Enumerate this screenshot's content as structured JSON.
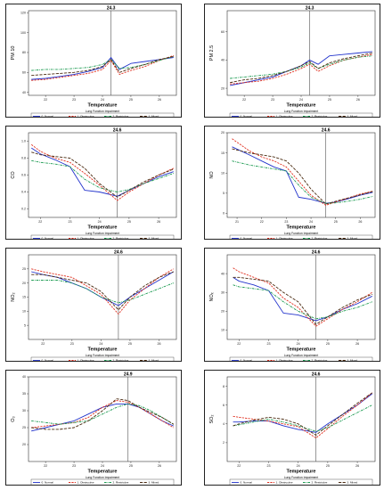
{
  "legend_title": "Lung Function Impairment",
  "x_axis_label": "Temperature",
  "series_styles": [
    {
      "name": "0. Normal",
      "color": "#2233cc",
      "dash": ""
    },
    {
      "name": "1. Obstructive",
      "color": "#e03020",
      "dash": "2.2 1.2"
    },
    {
      "name": "2. Restrictive",
      "color": "#1a9a50",
      "dash": "2.6 1 0.8 1"
    },
    {
      "name": "3. Mixed",
      "color": "#4a2a10",
      "dash": "3.2 1.4"
    }
  ],
  "chart_data": [
    {
      "type": "line",
      "threshold_label": "24.3",
      "threshold": 24.3,
      "ylabel": "PM 10",
      "xlim": [
        21.4,
        26.6
      ],
      "ylim": [
        37,
        122
      ],
      "xticks": [
        22,
        23,
        24,
        25,
        26
      ],
      "xtick_labels": [
        "22",
        "23",
        "24",
        "25",
        "26"
      ],
      "yticks": [
        40,
        60,
        80,
        100,
        120
      ],
      "ytick_labels": [
        "40",
        "60",
        "80",
        "100",
        "120"
      ],
      "x": [
        21.5,
        22,
        22.5,
        23,
        23.5,
        24,
        24.3,
        24.6,
        25,
        25.5,
        26,
        26.5
      ],
      "series": [
        {
          "name": "0. Normal",
          "values": [
            53,
            54,
            56,
            58,
            61,
            65,
            75,
            63,
            69,
            71,
            73,
            75
          ]
        },
        {
          "name": "1. Obstructive",
          "values": [
            52,
            53,
            55,
            57,
            59,
            63,
            72,
            58,
            62,
            66,
            72,
            77
          ]
        },
        {
          "name": "2. Restrictive",
          "values": [
            62,
            63,
            63,
            64,
            65,
            68,
            73,
            64,
            65,
            68,
            72,
            76
          ]
        },
        {
          "name": "3. Mixed",
          "values": [
            57,
            58,
            59,
            60,
            62,
            66,
            73,
            60,
            64,
            68,
            73,
            76
          ]
        }
      ]
    },
    {
      "type": "line",
      "threshold_label": "24.3",
      "threshold": 24.3,
      "ylabel": "PM 2.5",
      "xlim": [
        21.4,
        26.6
      ],
      "ylim": [
        15,
        75
      ],
      "xticks": [
        22,
        23,
        24,
        25,
        26
      ],
      "xtick_labels": [
        "22",
        "23",
        "24",
        "25",
        "26"
      ],
      "yticks": [
        20,
        40,
        60
      ],
      "ytick_labels": [
        "20",
        "40",
        "60"
      ],
      "x": [
        21.5,
        22,
        22.5,
        23,
        23.5,
        24,
        24.3,
        24.6,
        25,
        25.5,
        26,
        26.5
      ],
      "series": [
        {
          "name": "0. Normal",
          "values": [
            22,
            24,
            26,
            28,
            32,
            36,
            40,
            37,
            43,
            44,
            45,
            46
          ]
        },
        {
          "name": "1. Obstructive",
          "values": [
            23,
            24,
            25,
            27,
            30,
            34,
            37,
            32,
            36,
            40,
            42,
            44
          ]
        },
        {
          "name": "2. Restrictive",
          "values": [
            27,
            28,
            29,
            30,
            32,
            35,
            38,
            34,
            37,
            40,
            42,
            43
          ]
        },
        {
          "name": "3. Mixed",
          "values": [
            24,
            26,
            27,
            29,
            32,
            36,
            39,
            34,
            38,
            41,
            43,
            45
          ]
        }
      ]
    },
    {
      "type": "line",
      "threshold_label": "24.6",
      "threshold": 24.6,
      "ylabel": "CO",
      "xlim": [
        21.6,
        26.6
      ],
      "ylim": [
        0.1,
        1.1
      ],
      "xticks": [
        22,
        23,
        24,
        25,
        26
      ],
      "xtick_labels": [
        "22",
        "23",
        "24",
        "25",
        "26"
      ],
      "yticks": [
        0.2,
        0.4,
        0.6,
        0.8,
        1.0
      ],
      "ytick_labels": [
        "0.2",
        "0.4",
        "0.6",
        "0.8",
        "1.0"
      ],
      "x": [
        21.7,
        22,
        22.5,
        23,
        23.5,
        24,
        24.6,
        25,
        25.5,
        26,
        26.5
      ],
      "series": [
        {
          "name": "0. Normal",
          "values": [
            0.92,
            0.85,
            0.78,
            0.7,
            0.42,
            0.4,
            0.35,
            0.42,
            0.5,
            0.58,
            0.64
          ]
        },
        {
          "name": "1. Obstructive",
          "values": [
            0.96,
            0.88,
            0.8,
            0.75,
            0.62,
            0.48,
            0.3,
            0.4,
            0.5,
            0.6,
            0.68
          ]
        },
        {
          "name": "2. Restrictive",
          "values": [
            0.77,
            0.75,
            0.73,
            0.7,
            0.55,
            0.45,
            0.4,
            0.43,
            0.5,
            0.56,
            0.62
          ]
        },
        {
          "name": "3. Mixed",
          "values": [
            0.87,
            0.84,
            0.82,
            0.8,
            0.68,
            0.5,
            0.34,
            0.42,
            0.52,
            0.6,
            0.67
          ]
        }
      ]
    },
    {
      "type": "line",
      "threshold_label": "24.6",
      "threshold": 24.6,
      "ylabel": "NO",
      "xlim": [
        20.6,
        26.6
      ],
      "ylim": [
        -1,
        20
      ],
      "xticks": [
        21,
        22,
        23,
        24,
        25,
        26
      ],
      "xtick_labels": [
        "21",
        "22",
        "23",
        "24",
        "25",
        "26"
      ],
      "yticks": [
        0,
        5,
        10,
        15,
        20
      ],
      "ytick_labels": [
        "0",
        "5",
        "10",
        "15",
        "20"
      ],
      "x": [
        20.8,
        21.5,
        22,
        22.5,
        23,
        23.5,
        24,
        24.6,
        25,
        25.5,
        26,
        26.5
      ],
      "series": [
        {
          "name": "0. Normal",
          "values": [
            16.5,
            14.5,
            13,
            11.5,
            10.5,
            4,
            3.5,
            2.5,
            2.8,
            3.6,
            4.5,
            5.2
          ]
        },
        {
          "name": "1. Obstructive",
          "values": [
            18.5,
            15.5,
            14,
            13,
            11.5,
            8,
            4.5,
            2,
            2.8,
            3.8,
            4.8,
            5.5
          ]
        },
        {
          "name": "2. Restrictive",
          "values": [
            13,
            12,
            11.5,
            11,
            10.5,
            7,
            4,
            2.5,
            2.6,
            3,
            3.5,
            4.2
          ]
        },
        {
          "name": "3. Mixed",
          "values": [
            16,
            15,
            14.5,
            14,
            13,
            10,
            6,
            2.3,
            3,
            3.8,
            4.6,
            5.4
          ]
        }
      ]
    },
    {
      "type": "line",
      "threshold_label": "24.6",
      "threshold": 24.6,
      "ylabel": "NO₂",
      "xlim": [
        21.5,
        26.6
      ],
      "ylim": [
        0,
        30
      ],
      "xticks": [
        22,
        23,
        24,
        25,
        26
      ],
      "xtick_labels": [
        "22",
        "23",
        "24",
        "25",
        "26"
      ],
      "yticks": [
        5,
        10,
        15,
        20,
        25
      ],
      "ytick_labels": [
        "5",
        "10",
        "15",
        "20",
        "25"
      ],
      "x": [
        21.6,
        22,
        22.5,
        23,
        23.5,
        24,
        24.6,
        25,
        25.5,
        26,
        26.5
      ],
      "series": [
        {
          "name": "0. Normal",
          "values": [
            24,
            23,
            22,
            20,
            18,
            15,
            12,
            15,
            18,
            21,
            24
          ]
        },
        {
          "name": "1. Obstructive",
          "values": [
            25,
            24,
            23,
            22,
            19,
            16,
            9,
            14,
            18,
            22,
            25
          ]
        },
        {
          "name": "2. Restrictive",
          "values": [
            21,
            21,
            21,
            20,
            18,
            15,
            13,
            14,
            16,
            18,
            20
          ]
        },
        {
          "name": "3. Mixed",
          "values": [
            23,
            23,
            22,
            21,
            20,
            17,
            10.5,
            15,
            19,
            22,
            24
          ]
        }
      ]
    },
    {
      "type": "line",
      "threshold_label": "24.6",
      "threshold": 24.6,
      "ylabel": "NOₓ",
      "xlim": [
        21.6,
        26.6
      ],
      "ylim": [
        5,
        50
      ],
      "xticks": [
        22,
        23,
        24,
        25,
        26
      ],
      "xtick_labels": [
        "22",
        "23",
        "24",
        "25",
        "26"
      ],
      "yticks": [
        10,
        20,
        30,
        40
      ],
      "ytick_labels": [
        "10",
        "20",
        "30",
        "40"
      ],
      "x": [
        21.8,
        22,
        22.5,
        23,
        23.5,
        24,
        24.6,
        25,
        25.5,
        26,
        26.5
      ],
      "series": [
        {
          "name": "0. Normal",
          "values": [
            38,
            36,
            34,
            31,
            19,
            18,
            15,
            17,
            21,
            24,
            28
          ]
        },
        {
          "name": "1. Obstructive",
          "values": [
            43,
            41,
            38,
            35,
            27,
            22,
            12,
            16,
            21,
            25,
            30
          ]
        },
        {
          "name": "2. Restrictive",
          "values": [
            34,
            33,
            32,
            31,
            25,
            20,
            16,
            17,
            20,
            22,
            25
          ]
        },
        {
          "name": "3. Mixed",
          "values": [
            38,
            38,
            37,
            36,
            30,
            25,
            13,
            17,
            22,
            26,
            29
          ]
        }
      ]
    },
    {
      "type": "line",
      "threshold_label": "24.9",
      "threshold": 24.9,
      "ylabel": "O₃",
      "xlim": [
        21.4,
        26.6
      ],
      "ylim": [
        15,
        40
      ],
      "xticks": [
        22,
        23,
        24,
        25,
        26
      ],
      "xtick_labels": [
        "22",
        "23",
        "24",
        "25",
        "26"
      ],
      "yticks": [
        20,
        25,
        30,
        35,
        40
      ],
      "ytick_labels": [
        "20",
        "25",
        "30",
        "35",
        "40"
      ],
      "x": [
        21.5,
        22,
        22.5,
        23,
        23.5,
        24,
        24.5,
        24.9,
        25.3,
        25.7,
        26.1,
        26.5
      ],
      "series": [
        {
          "name": "0. Normal",
          "values": [
            24,
            25,
            26,
            27,
            29,
            31,
            32,
            32,
            31,
            29,
            27,
            25.5
          ]
        },
        {
          "name": "1. Obstructive",
          "values": [
            25,
            25.5,
            26,
            26.5,
            28,
            31,
            33,
            32.5,
            31,
            29,
            27,
            25
          ]
        },
        {
          "name": "2. Restrictive",
          "values": [
            27,
            26.5,
            26,
            26.5,
            27,
            29,
            31,
            32,
            31.5,
            30,
            28,
            26
          ]
        },
        {
          "name": "3. Mixed",
          "values": [
            25,
            24.5,
            24.5,
            25,
            27,
            30,
            33.5,
            33,
            31,
            29.5,
            28,
            26
          ]
        }
      ]
    },
    {
      "type": "line",
      "threshold_label": "24.6",
      "threshold": 24.6,
      "ylabel": "SO₂",
      "xlim": [
        21.6,
        26.6
      ],
      "ylim": [
        0,
        9
      ],
      "xticks": [
        22,
        23,
        24,
        25,
        26
      ],
      "xtick_labels": [
        "22",
        "23",
        "24",
        "25",
        "26"
      ],
      "yticks": [
        2,
        4,
        6,
        8
      ],
      "ytick_labels": [
        "2",
        "4",
        "6",
        "8"
      ],
      "x": [
        21.8,
        22,
        22.5,
        23,
        23.5,
        24,
        24.6,
        25,
        25.5,
        26,
        26.5
      ],
      "series": [
        {
          "name": "0. Normal",
          "values": [
            4.2,
            4.2,
            4.3,
            4.3,
            3.8,
            3.4,
            3.1,
            4.0,
            5.0,
            6.0,
            7.2
          ]
        },
        {
          "name": "1. Obstructive",
          "values": [
            4.8,
            4.7,
            4.5,
            4.3,
            4.0,
            3.7,
            2.5,
            3.5,
            4.8,
            6.0,
            7.3
          ]
        },
        {
          "name": "2. Restrictive",
          "values": [
            3.8,
            3.9,
            4.2,
            4.5,
            4.2,
            3.8,
            3.2,
            3.6,
            4.4,
            5.2,
            6.0
          ]
        },
        {
          "name": "3. Mixed",
          "values": [
            3.8,
            4.0,
            4.4,
            4.7,
            4.5,
            4.0,
            2.8,
            3.8,
            5.0,
            6.2,
            7.3
          ]
        }
      ]
    }
  ]
}
